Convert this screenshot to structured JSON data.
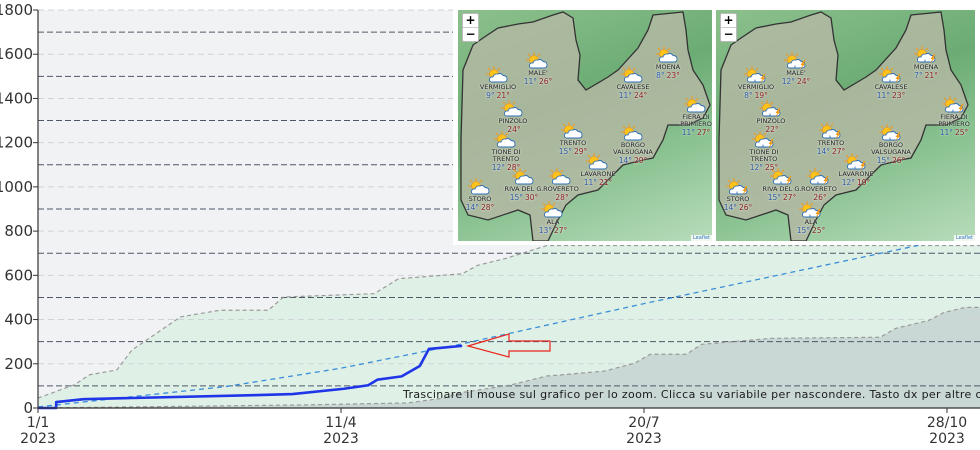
{
  "chart_data": {
    "type": "area",
    "title": "",
    "xlabel": "",
    "ylabel": "",
    "xlim": [
      "2023-01-01",
      "2023-11-06"
    ],
    "ylim": [
      0,
      1800
    ],
    "y_ticks": [
      "0",
      "200",
      "400",
      "600",
      "800",
      "1000",
      "1200",
      "1400",
      "1600",
      "1800"
    ],
    "y_tick_values": [
      0,
      200,
      400,
      600,
      800,
      1000,
      1200,
      1400,
      1600,
      1800
    ],
    "x_ticks": [
      {
        "date": "2023-01-01",
        "line1": "1/1",
        "line2": "2023"
      },
      {
        "date": "2023-04-11",
        "line1": "11/4",
        "line2": "2023"
      },
      {
        "date": "2023-07-20",
        "line1": "20/7",
        "line2": "2023"
      },
      {
        "date": "2023-10-28",
        "line1": "28/10",
        "line2": "2023"
      }
    ],
    "grid": true,
    "series": [
      {
        "kind": "area-dashed",
        "color": "#dff0e7",
        "line_color": "#9a9a9a",
        "dates": [
          "2023-01-01",
          "2023-01-13",
          "2023-01-18",
          "2023-01-27",
          "2023-02-01",
          "2023-02-17",
          "2023-03-02",
          "2023-03-18",
          "2023-03-23",
          "2023-04-22",
          "2023-04-30",
          "2023-05-21",
          "2023-05-26",
          "2023-06-04",
          "2023-06-18"
        ],
        "values": [
          45,
          105,
          150,
          172,
          262,
          412,
          442,
          442,
          502,
          517,
          585,
          607,
          645,
          675,
          735
        ]
      },
      {
        "kind": "area-dashed",
        "color": "#c9d8d5",
        "line_color": "#9a9a9a",
        "dates": [
          "2023-01-01",
          "2023-03-30",
          "2023-05-03",
          "2023-05-15",
          "2023-05-20",
          "2023-06-06",
          "2023-06-18",
          "2023-06-22",
          "2023-07-07",
          "2023-07-17",
          "2023-07-22",
          "2023-08-03",
          "2023-08-08",
          "2023-08-31",
          "2023-10-06",
          "2023-10-11",
          "2023-10-22",
          "2023-10-27",
          "2023-11-03",
          "2023-11-06"
        ],
        "values": [
          0,
          14,
          23,
          45,
          68,
          104,
          145,
          149,
          167,
          203,
          243,
          243,
          288,
          315,
          320,
          360,
          396,
          432,
          455,
          455
        ]
      },
      {
        "kind": "line-dashed",
        "color": "#3b8fd8",
        "dates": [
          "2023-01-01",
          "2023-03-04",
          "2023-04-11",
          "2023-05-21",
          "2023-07-20",
          "2023-10-18",
          "2023-11-06"
        ],
        "values": [
          5,
          97,
          180,
          290,
          472,
          734,
          800
        ]
      },
      {
        "kind": "line",
        "color": "#1f35e8",
        "dates": [
          "2023-01-01",
          "2023-01-07",
          "2023-01-07",
          "2023-01-16",
          "2023-03-13",
          "2023-03-26",
          "2023-04-12",
          "2023-04-20",
          "2023-04-23",
          "2023-05-01",
          "2023-05-07",
          "2023-05-10",
          "2023-05-21"
        ],
        "values": [
          0,
          0,
          27,
          40,
          58,
          63,
          87,
          103,
          128,
          143,
          190,
          267,
          281
        ]
      }
    ],
    "annotation": "Trascinare il mouse sul grafico per lo zoom. Clicca su variabile per nascondere. Tasto dx per altre o",
    "arrow_color": "#e8241c"
  },
  "maps": [
    {
      "zoom_in": "+",
      "zoom_out": "−",
      "attribution": "Leaflet",
      "icon": "sun-cloud-icon",
      "cities": [
        {
          "name": "VERMIGLIO",
          "min": "9°",
          "max": "21°"
        },
        {
          "name": "MALE'",
          "min": "11°",
          "max": "26°"
        },
        {
          "name": "PINZOLO",
          "min": "",
          "max": "24°"
        },
        {
          "name": "TIONE DI TRENTO",
          "min": "12°",
          "max": "28°"
        },
        {
          "name": "STORO",
          "min": "14°",
          "max": "28°"
        },
        {
          "name": "RIVA DEL G.",
          "min": "15°",
          "max": "30°"
        },
        {
          "name": "ROVERETO",
          "min": "",
          "max": "28°"
        },
        {
          "name": "ALA",
          "min": "13°",
          "max": "27°"
        },
        {
          "name": "TRENTO",
          "min": "15°",
          "max": "29°"
        },
        {
          "name": "LAVARONE",
          "min": "11°",
          "max": "21°"
        },
        {
          "name": "BORGO VALSUGANA",
          "min": "14°",
          "max": "29°"
        },
        {
          "name": "CAVALESE",
          "min": "11°",
          "max": "24°"
        },
        {
          "name": "MOENA",
          "min": "8°",
          "max": "23°"
        },
        {
          "name": "FIERA DI PRIMIERO",
          "min": "11°",
          "max": "27°"
        }
      ]
    },
    {
      "zoom_in": "+",
      "zoom_out": "−",
      "attribution": "Leaflet",
      "icon": "sun-cloud-storm-icon",
      "cities": [
        {
          "name": "VERMIGLIO",
          "min": "8°",
          "max": "19°"
        },
        {
          "name": "MALE'",
          "min": "12°",
          "max": "24°"
        },
        {
          "name": "PINZOLO",
          "min": "",
          "max": "22°"
        },
        {
          "name": "TIONE DI TRENTO",
          "min": "12°",
          "max": "25°"
        },
        {
          "name": "STORO",
          "min": "14°",
          "max": "26°"
        },
        {
          "name": "RIVA DEL G.",
          "min": "15°",
          "max": "27°"
        },
        {
          "name": "ROVERETO",
          "min": "",
          "max": "26°"
        },
        {
          "name": "ALA",
          "min": "15°",
          "max": "25°"
        },
        {
          "name": "TRENTO",
          "min": "14°",
          "max": "27°"
        },
        {
          "name": "LAVARONE",
          "min": "12°",
          "max": "19°"
        },
        {
          "name": "BORGO VALSUGANA",
          "min": "15°",
          "max": "26°"
        },
        {
          "name": "CAVALESE",
          "min": "11°",
          "max": "23°"
        },
        {
          "name": "MOENA",
          "min": "7°",
          "max": "21°"
        },
        {
          "name": "FIERA DI PRIMIERO",
          "min": "11°",
          "max": "25°"
        }
      ]
    }
  ]
}
